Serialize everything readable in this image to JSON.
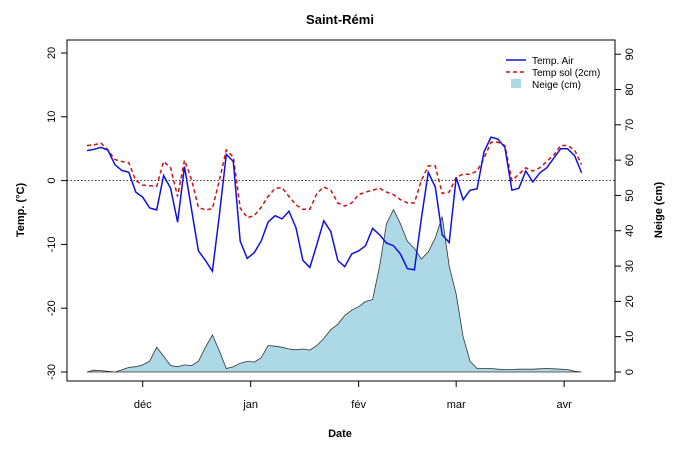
{
  "chart_data": {
    "type": "line",
    "title": "Saint-Rémi",
    "xlabel": "Date",
    "ylabel_left": "Temp. (°C)",
    "ylabel_right": "Neige (cm)",
    "ylim_left": [
      -30,
      20
    ],
    "ylim_right": [
      0,
      90
    ],
    "y_ticks_left": [
      "-30",
      "-20",
      "-10",
      "0",
      "10",
      "20"
    ],
    "y_ticks_right": [
      "0",
      "10",
      "20",
      "30",
      "40",
      "50",
      "60",
      "70",
      "80",
      "90"
    ],
    "x_unit": "day index starting Nov 15",
    "xlim": [
      0,
      145
    ],
    "x_ticks": [
      {
        "label": "déc",
        "day": 16
      },
      {
        "label": "jan",
        "day": 47
      },
      {
        "label": "fév",
        "day": 78
      },
      {
        "label": "mar",
        "day": 106
      },
      {
        "label": "avr",
        "day": 137
      }
    ],
    "reference_line": {
      "y": 0,
      "style": "dotted"
    },
    "legend": {
      "position": "top-right",
      "entries": [
        {
          "label": "Temp. Air",
          "style": "solid-line",
          "color": "#1111dd"
        },
        {
          "label": "Temp sol (2cm)",
          "style": "dashed-line",
          "color": "#cc1111"
        },
        {
          "label": "Neige (cm)",
          "style": "filled-box",
          "color": "#add8e6"
        }
      ]
    },
    "series": [
      {
        "name": "Temp. Air",
        "axis": "left",
        "color": "#1111dd",
        "x": [
          0,
          2,
          4,
          6,
          8,
          10,
          12,
          14,
          16,
          18,
          20,
          22,
          24,
          26,
          28,
          30,
          32,
          34,
          36,
          38,
          40,
          42,
          44,
          46,
          48,
          50,
          52,
          54,
          56,
          58,
          60,
          62,
          64,
          66,
          68,
          70,
          72,
          74,
          76,
          78,
          80,
          82,
          84,
          86,
          88,
          90,
          92,
          94,
          96,
          98,
          100,
          102,
          104,
          106,
          108,
          110,
          112,
          114,
          116,
          118,
          120,
          122,
          124,
          126,
          128,
          130,
          132,
          134,
          136,
          138,
          140,
          142
        ],
        "y": [
          4.7,
          4.9,
          5.2,
          4.8,
          2.5,
          1.6,
          1.3,
          -1.8,
          -2.6,
          -4.3,
          -4.6,
          0.8,
          -1.2,
          -6.5,
          2.2,
          -4.5,
          -11,
          -12.5,
          -14.2,
          -5.5,
          4.1,
          3,
          -9.5,
          -12.2,
          -11.3,
          -9.5,
          -6.5,
          -5.5,
          -6,
          -4.8,
          -7.4,
          -12.5,
          -13.6,
          -10,
          -6.3,
          -8,
          -12.5,
          -13.5,
          -11.5,
          -11,
          -10.2,
          -7.5,
          -8.5,
          -9.8,
          -10.2,
          -11.5,
          -13.8,
          -14,
          -6,
          1.3,
          -1,
          -8.5,
          -9.7,
          0.5,
          -3,
          -1.5,
          -1.3,
          4.5,
          6.8,
          6.5,
          5.2,
          -1.5,
          -1.2,
          1.5,
          -0.2,
          1.2,
          2,
          3.5,
          5,
          5,
          3.9,
          1.2
        ]
      },
      {
        "name": "Temp sol (2cm)",
        "axis": "left",
        "color": "#cc1111",
        "x": [
          0,
          2,
          4,
          6,
          8,
          10,
          12,
          14,
          16,
          18,
          20,
          22,
          24,
          26,
          28,
          30,
          32,
          34,
          36,
          38,
          40,
          42,
          44,
          46,
          48,
          50,
          52,
          54,
          56,
          58,
          60,
          62,
          64,
          66,
          68,
          70,
          72,
          74,
          76,
          78,
          80,
          82,
          84,
          86,
          88,
          90,
          92,
          94,
          96,
          98,
          100,
          102,
          104,
          106,
          108,
          110,
          112,
          114,
          116,
          118,
          120,
          122,
          124,
          126,
          128,
          130,
          132,
          134,
          136,
          138,
          140,
          142
        ],
        "y": [
          5.5,
          5.6,
          5.9,
          4.8,
          3.3,
          3,
          2.8,
          0,
          -0.7,
          -0.8,
          -0.9,
          3,
          2,
          -2.5,
          3.2,
          0.2,
          -4.2,
          -4.6,
          -4.4,
          0,
          4.8,
          3.7,
          -4.3,
          -5.8,
          -5.5,
          -4.2,
          -2.5,
          -1.2,
          -1.1,
          -2.5,
          -3.8,
          -4.5,
          -4.5,
          -2,
          -1,
          -1.5,
          -3.5,
          -4,
          -3.5,
          -2.2,
          -1.8,
          -1.5,
          -1.2,
          -1.8,
          -2.2,
          -3,
          -3.5,
          -3.5,
          0,
          2.3,
          2.3,
          -2,
          -1.8,
          0.5,
          1,
          1,
          1.5,
          3.5,
          6,
          6,
          5.5,
          0,
          1,
          2,
          1.5,
          2,
          3,
          4,
          5.5,
          5.5,
          4.8,
          2.5
        ]
      },
      {
        "name": "Neige (cm)",
        "axis": "right",
        "type": "area",
        "color": "#add8e6",
        "x": [
          0,
          2,
          4,
          6,
          8,
          10,
          12,
          14,
          16,
          18,
          20,
          22,
          24,
          26,
          28,
          30,
          32,
          34,
          36,
          38,
          40,
          42,
          44,
          46,
          48,
          50,
          52,
          54,
          56,
          58,
          60,
          62,
          64,
          66,
          68,
          70,
          72,
          74,
          76,
          78,
          80,
          82,
          84,
          86,
          88,
          90,
          92,
          94,
          96,
          98,
          100,
          102,
          104,
          106,
          108,
          110,
          112,
          114,
          116,
          118,
          120,
          122,
          124,
          126,
          128,
          130,
          132,
          134,
          136,
          138,
          140,
          142
        ],
        "y": [
          0,
          0.5,
          0.4,
          0.2,
          0,
          0.6,
          1.3,
          1.5,
          2,
          3.1,
          7,
          4.5,
          1.8,
          1.5,
          2,
          1.8,
          3,
          7,
          10.5,
          6,
          1,
          1.5,
          2.5,
          3,
          2.8,
          4,
          7.5,
          7.3,
          7,
          6.5,
          6.3,
          6.5,
          6.2,
          7.5,
          9.5,
          12,
          13.5,
          16,
          17.5,
          18.5,
          20,
          20.5,
          30,
          42,
          46,
          42,
          37,
          35,
          32,
          34,
          38,
          44,
          30,
          22,
          10,
          3,
          1,
          1,
          1,
          0.8,
          0.7,
          0.7,
          0.8,
          0.8,
          0.8,
          0.9,
          1,
          0.9,
          0.8,
          0.7,
          0.2,
          0
        ]
      }
    ]
  }
}
